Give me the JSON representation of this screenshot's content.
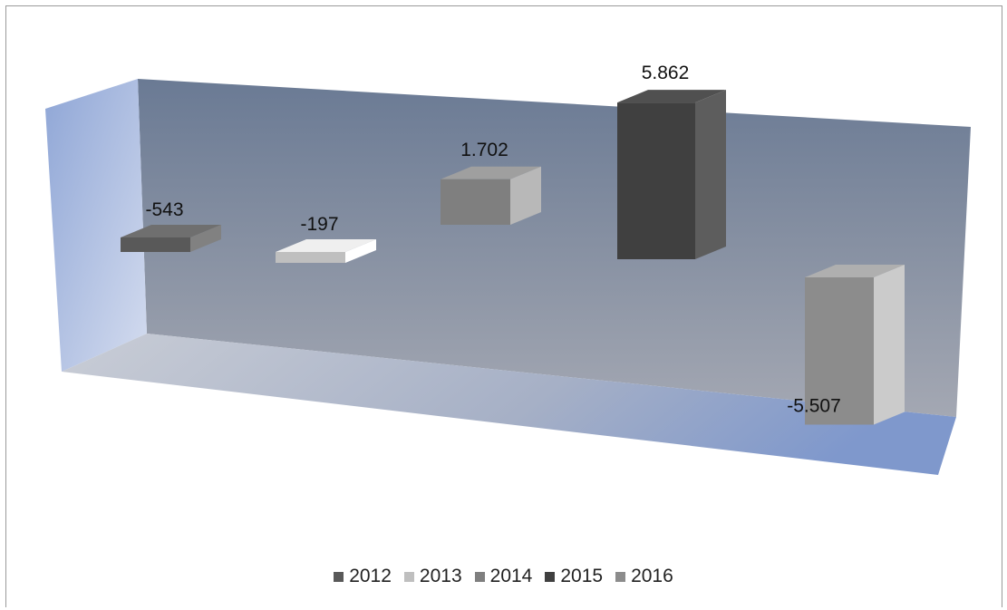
{
  "chart_data": {
    "type": "bar",
    "categories": [
      "2012",
      "2013",
      "2014",
      "2015",
      "2016"
    ],
    "series": [
      {
        "name": "2012",
        "values": [
          -543,
          null,
          null,
          null,
          null
        ],
        "color": "#595959"
      },
      {
        "name": "2013",
        "values": [
          null,
          -197,
          null,
          null,
          null
        ],
        "color": "#bfbfbf"
      },
      {
        "name": "2014",
        "values": [
          null,
          null,
          1702,
          null,
          null
        ],
        "color": "#7f7f7f"
      },
      {
        "name": "2015",
        "values": [
          null,
          null,
          null,
          5862,
          null
        ],
        "color": "#404040"
      },
      {
        "name": "2016",
        "values": [
          null,
          null,
          null,
          null,
          -5507
        ],
        "color": "#8c8c8c"
      }
    ],
    "data_labels": [
      "-543",
      "-197",
      "1.702",
      "5.862",
      "-5.507"
    ],
    "legend": "bottom",
    "style": "3d-perspective"
  }
}
